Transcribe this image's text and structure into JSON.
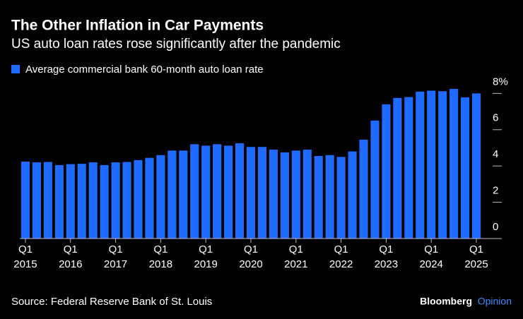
{
  "chart_data": {
    "type": "bar",
    "title": "The Other Inflation in Car Payments",
    "subtitle": "US auto loan rates rose significantly after the pandemic",
    "source": "Source: Federal Reserve Bank of St. Louis",
    "brand": "Bloomberg",
    "brand_suffix": "Opinion",
    "categories": [
      "Q1\n2015",
      null,
      null,
      null,
      "Q1\n2016",
      null,
      null,
      null,
      "Q1\n2017",
      null,
      null,
      null,
      "Q1\n2018",
      null,
      null,
      null,
      "Q1\n2019",
      null,
      null,
      null,
      "Q1\n2020",
      null,
      null,
      null,
      "Q1\n2021",
      null,
      null,
      null,
      "Q1\n2022",
      null,
      null,
      null,
      "Q1\n2023",
      null,
      null,
      null,
      "Q1\n2024",
      null,
      null,
      null,
      "Q1\n2025"
    ],
    "series": [
      {
        "name": "Average commercial bank 60-month auto loan rate",
        "color": "#1f6bff",
        "values": [
          4.24,
          4.2,
          4.22,
          4.05,
          4.1,
          4.12,
          4.2,
          4.05,
          4.2,
          4.22,
          4.32,
          4.45,
          4.6,
          4.85,
          4.85,
          5.2,
          5.12,
          5.2,
          5.12,
          5.25,
          5.05,
          5.05,
          4.9,
          4.75,
          4.85,
          4.9,
          4.55,
          4.6,
          4.5,
          4.8,
          5.45,
          6.5,
          7.4,
          7.75,
          7.8,
          8.1,
          8.15,
          8.12,
          8.25,
          7.78,
          8.0
        ]
      }
    ],
    "ylim": [
      0,
      8.5
    ],
    "yticks": [
      0,
      2,
      4,
      6,
      {
        "value": 8,
        "label": "8%"
      }
    ],
    "grid": false
  }
}
